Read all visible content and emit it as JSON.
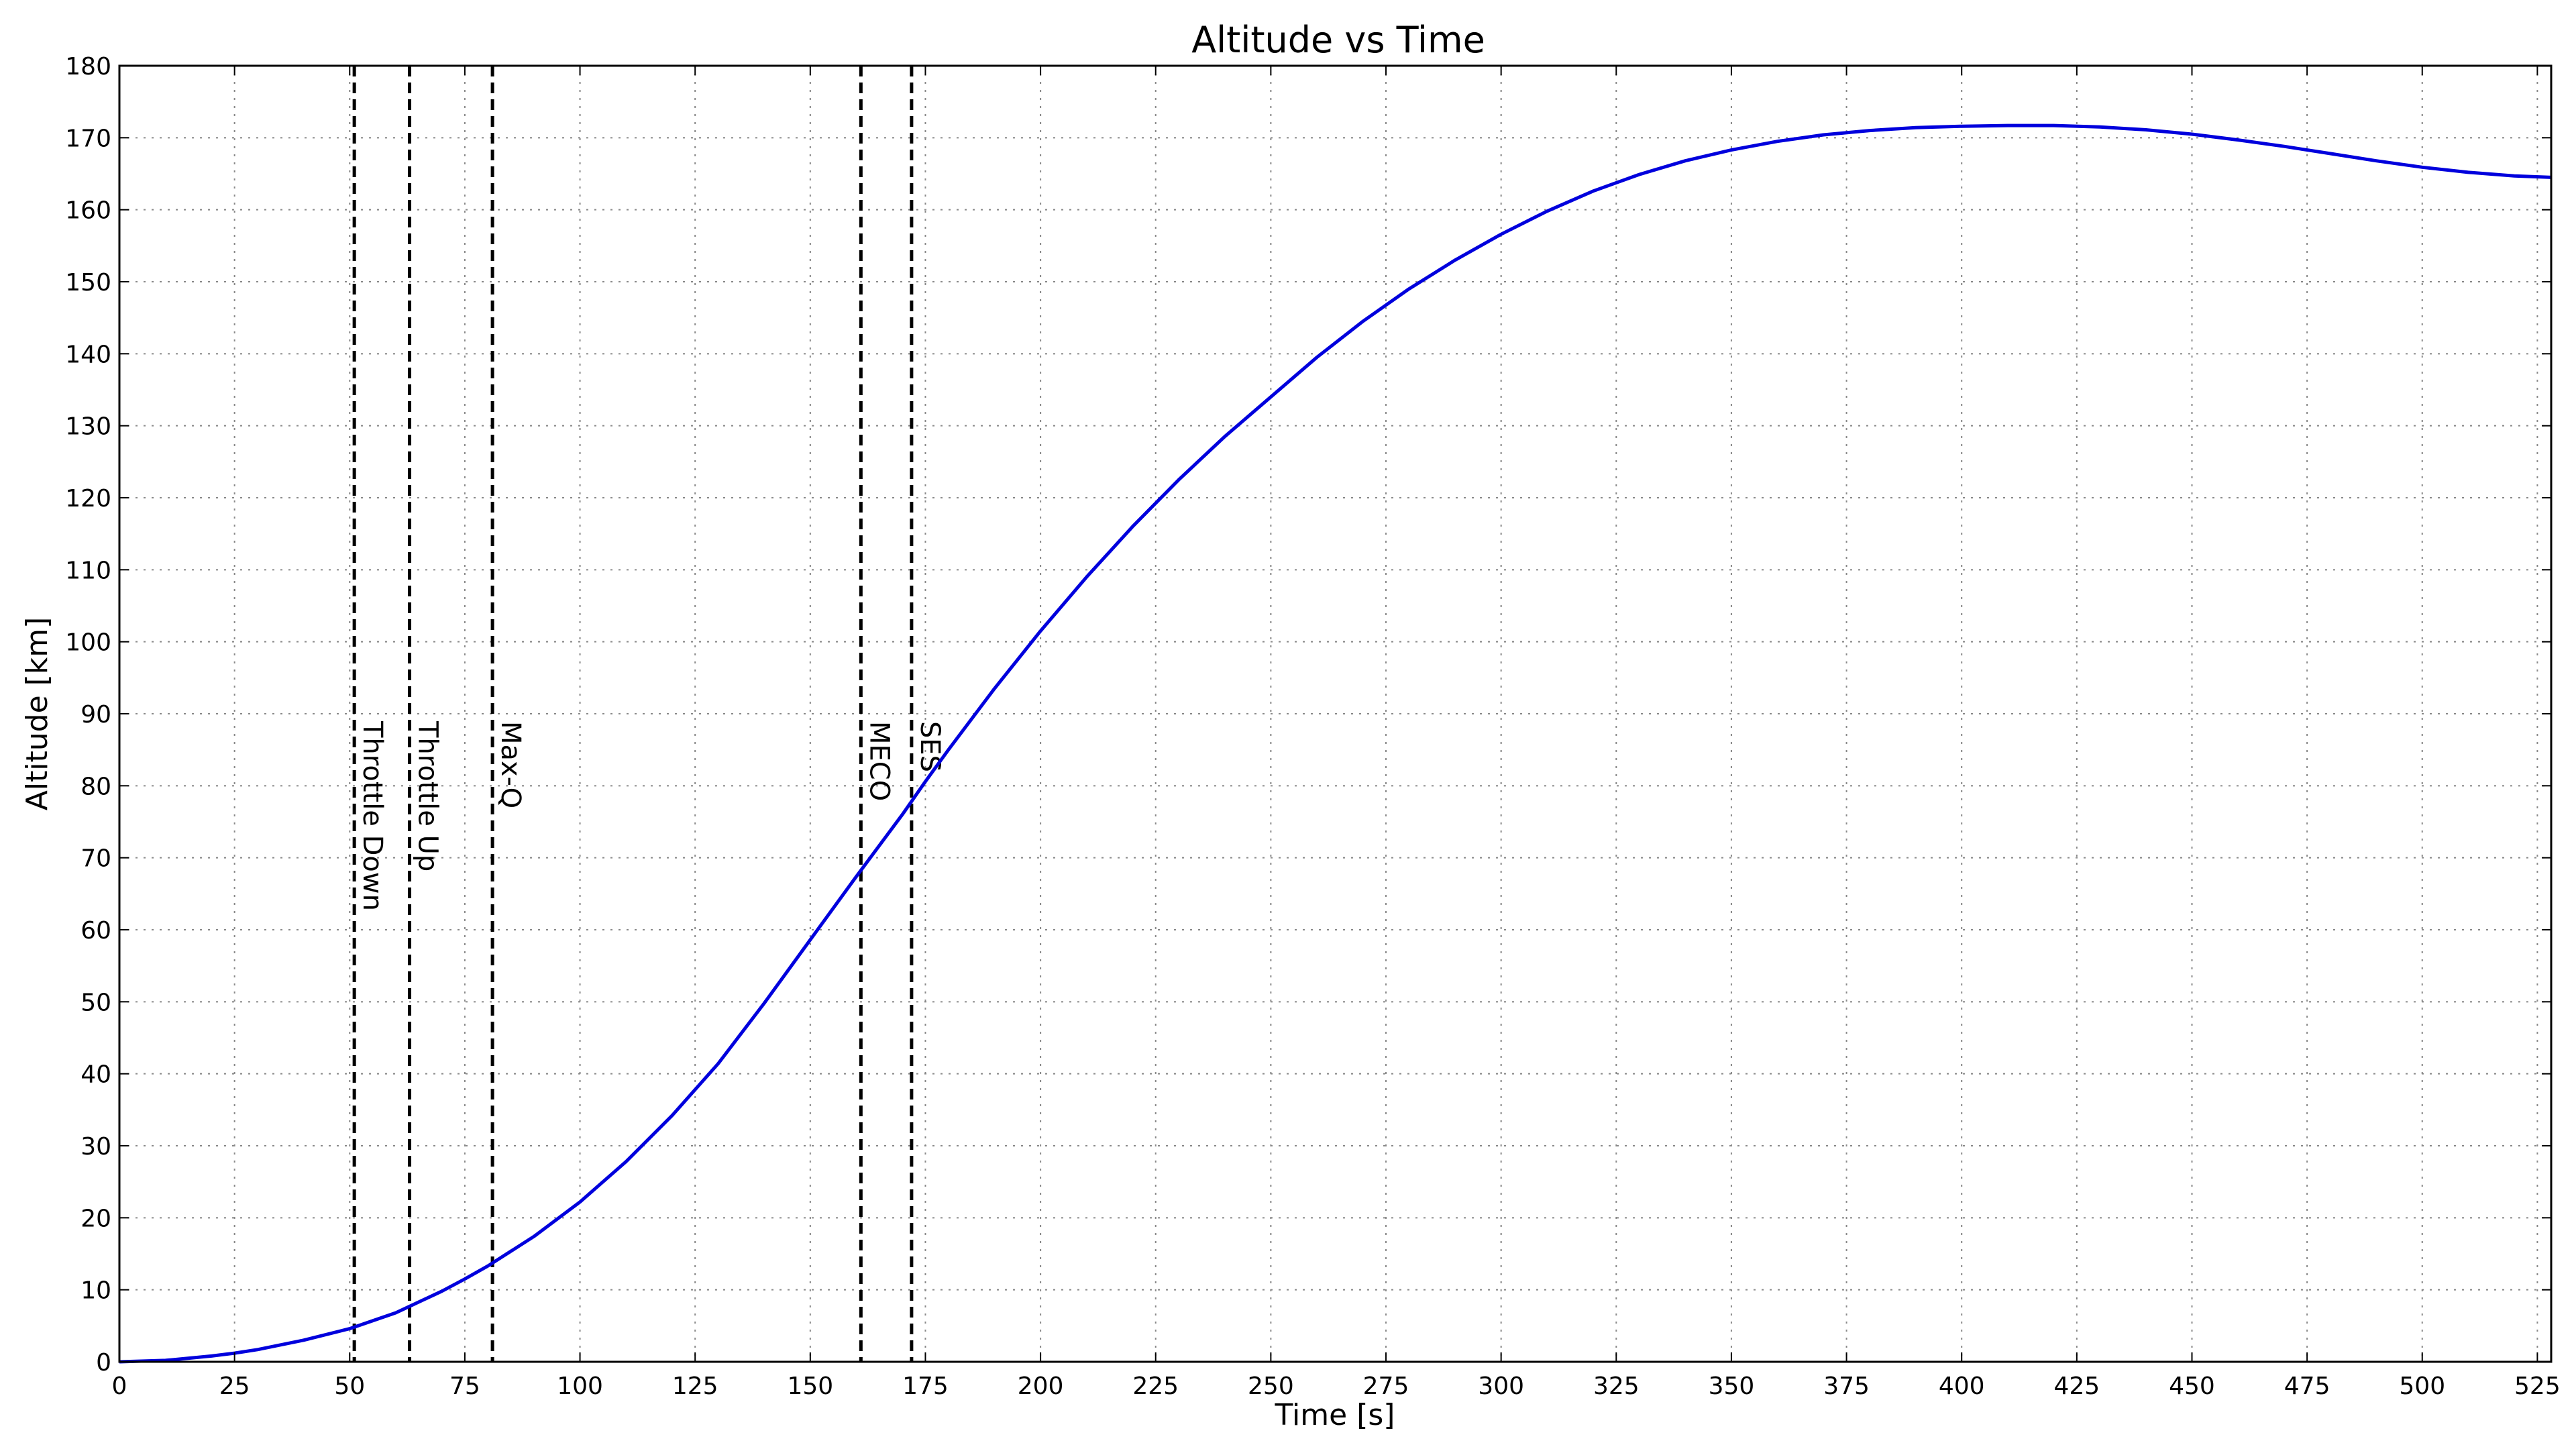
{
  "chart_data": {
    "type": "line",
    "title": "Altitude vs Time",
    "xlabel": "Time [s]",
    "ylabel": "Altitude [km]",
    "xlim": [
      0,
      528
    ],
    "ylim": [
      0,
      180
    ],
    "xticks": [
      0,
      25,
      50,
      75,
      100,
      125,
      150,
      175,
      200,
      225,
      250,
      275,
      300,
      325,
      350,
      375,
      400,
      425,
      450,
      475,
      500,
      525
    ],
    "yticks": [
      0,
      10,
      20,
      30,
      40,
      50,
      60,
      70,
      80,
      90,
      100,
      110,
      120,
      130,
      140,
      150,
      160,
      170,
      180
    ],
    "grid": true,
    "series": [
      {
        "color": "#0000dd",
        "points": [
          [
            0,
            0
          ],
          [
            10,
            0.2
          ],
          [
            20,
            0.8
          ],
          [
            25,
            1.2
          ],
          [
            30,
            1.7
          ],
          [
            40,
            3.0
          ],
          [
            50,
            4.6
          ],
          [
            60,
            6.8
          ],
          [
            70,
            9.8
          ],
          [
            75,
            11.5
          ],
          [
            80,
            13.3
          ],
          [
            90,
            17.4
          ],
          [
            100,
            22.2
          ],
          [
            110,
            27.8
          ],
          [
            120,
            34.2
          ],
          [
            130,
            41.4
          ],
          [
            140,
            49.8
          ],
          [
            150,
            58.6
          ],
          [
            160,
            67.4
          ],
          [
            170,
            76.0
          ],
          [
            175,
            80.6
          ],
          [
            180,
            85.0
          ],
          [
            190,
            93.5
          ],
          [
            200,
            101.5
          ],
          [
            210,
            109.0
          ],
          [
            220,
            116.0
          ],
          [
            230,
            122.5
          ],
          [
            240,
            128.5
          ],
          [
            250,
            134.0
          ],
          [
            260,
            139.5
          ],
          [
            270,
            144.5
          ],
          [
            280,
            149.0
          ],
          [
            290,
            153.0
          ],
          [
            300,
            156.6
          ],
          [
            310,
            159.8
          ],
          [
            320,
            162.6
          ],
          [
            330,
            164.9
          ],
          [
            340,
            166.8
          ],
          [
            350,
            168.3
          ],
          [
            360,
            169.5
          ],
          [
            370,
            170.4
          ],
          [
            380,
            171.0
          ],
          [
            390,
            171.4
          ],
          [
            400,
            171.6
          ],
          [
            410,
            171.7
          ],
          [
            420,
            171.7
          ],
          [
            430,
            171.5
          ],
          [
            440,
            171.1
          ],
          [
            450,
            170.5
          ],
          [
            460,
            169.7
          ],
          [
            470,
            168.8
          ],
          [
            480,
            167.8
          ],
          [
            490,
            166.8
          ],
          [
            500,
            165.9
          ],
          [
            510,
            165.2
          ],
          [
            520,
            164.7
          ],
          [
            528,
            164.5
          ]
        ]
      }
    ],
    "events": [
      {
        "label": "Throttle Down",
        "x": 51
      },
      {
        "label": "Throttle Up",
        "x": 63
      },
      {
        "label": "Max-Q",
        "x": 81
      },
      {
        "label": "MECO",
        "x": 161
      },
      {
        "label": "SES",
        "x": 172
      }
    ]
  }
}
